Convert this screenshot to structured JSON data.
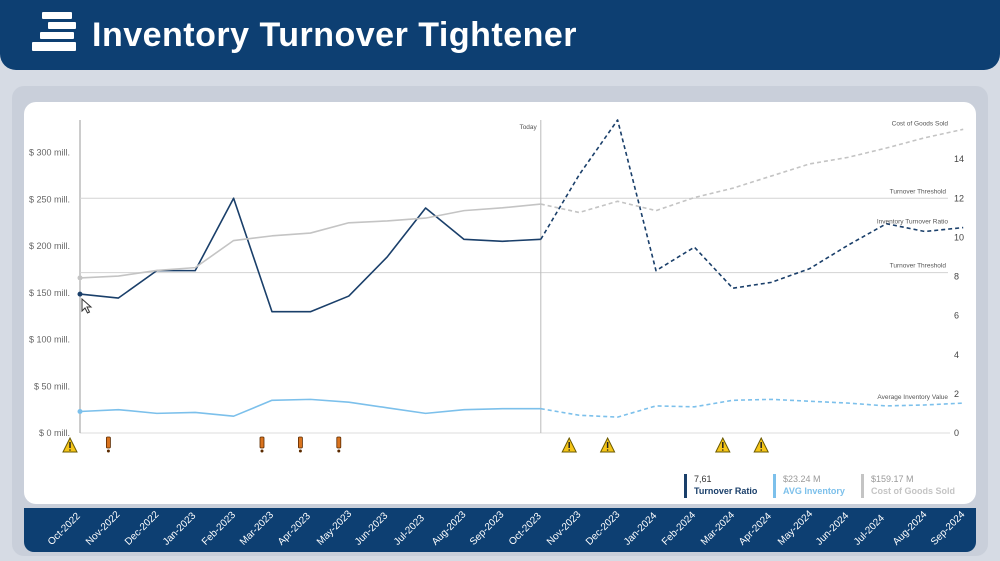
{
  "header": {
    "title": "Inventory Turnover Tightener"
  },
  "legend": [
    {
      "value": "7,61",
      "name": "Turnover Ratio",
      "color": "#1a3f6a",
      "value_color": "#333333"
    },
    {
      "value": "$23.24 M",
      "name": "AVG Inventory",
      "color": "#7cc0eb",
      "value_color": "#9a9a9a"
    },
    {
      "value": "$159.17 M",
      "name": "Cost of Goods Sold",
      "color": "#c4c4c4",
      "value_color": "#9a9a9a"
    }
  ],
  "chart_data": {
    "type": "line",
    "categories": [
      "Oct-2022",
      "Nov-2022",
      "Dec-2022",
      "Jan-2023",
      "Feb-2023",
      "Mar-2023",
      "Apr-2023",
      "May-2023",
      "Jun-2023",
      "Jul-2023",
      "Aug-2023",
      "Sep-2023",
      "Oct-2023",
      "Nov-2023",
      "Dec-2023",
      "Jan-2024",
      "Feb-2024",
      "Mar-2024",
      "Apr-2024",
      "May-2024",
      "Jun-2024",
      "Jul-2024",
      "Aug-2024",
      "Sep-2024"
    ],
    "today_index": 12,
    "today_label": "Today",
    "left_axis": {
      "ticks": [
        0,
        50,
        100,
        150,
        200,
        250,
        300
      ],
      "tick_labels": [
        "$ 0 mill.",
        "$ 50 mill.",
        "$ 100 mill.",
        "$ 150 mill.",
        "$ 200 mill.",
        "$ 250 mill.",
        "$ 300 mill."
      ],
      "ylim": [
        0,
        335
      ]
    },
    "right_axis": {
      "ticks": [
        0,
        2,
        4,
        6,
        8,
        10,
        12,
        14
      ],
      "tick_labels": [
        "0",
        "2",
        "4",
        "6",
        "8",
        "10",
        "12",
        "14"
      ],
      "ylim": [
        0,
        16
      ]
    },
    "series": [
      {
        "name": "Turnover Ratio",
        "axis": "right",
        "color": "#1a3f6a",
        "label": "Inventory Turnover Ratio",
        "values": [
          7.1,
          6.9,
          8.3,
          8.3,
          12.0,
          6.2,
          6.2,
          7.0,
          9.0,
          11.5,
          9.9,
          9.8,
          9.9,
          13.2,
          16.0,
          8.3,
          9.5,
          7.4,
          7.7,
          8.4,
          9.6,
          10.7,
          10.3,
          10.5
        ]
      },
      {
        "name": "AVG Inventory",
        "axis": "left",
        "color": "#7cc0eb",
        "label": "Average Inventory Value",
        "values": [
          23,
          25,
          21,
          22,
          18,
          35,
          36,
          33,
          27,
          21,
          25,
          26,
          26,
          19,
          17,
          29,
          28,
          35,
          36,
          34,
          32,
          29,
          30,
          32
        ]
      },
      {
        "name": "Cost of Goods Sold",
        "axis": "left",
        "color": "#c4c4c4",
        "label": "Cost of Goods Sold",
        "values": [
          166,
          168,
          174,
          177,
          206,
          211,
          214,
          225,
          227,
          230,
          238,
          241,
          245,
          236,
          248,
          238,
          252,
          262,
          275,
          288,
          295,
          305,
          316,
          325
        ]
      }
    ],
    "thresholds": [
      {
        "label": "Turnover Threshold",
        "value": 12
      },
      {
        "label": "Turnover Threshold",
        "value": 8.2
      }
    ],
    "events": [
      {
        "index": 0,
        "kind": "warning"
      },
      {
        "index": 1,
        "kind": "alert"
      },
      {
        "index": 5,
        "kind": "alert"
      },
      {
        "index": 6,
        "kind": "alert"
      },
      {
        "index": 7,
        "kind": "alert"
      },
      {
        "index": 13,
        "kind": "warning"
      },
      {
        "index": 14,
        "kind": "warning"
      },
      {
        "index": 17,
        "kind": "warning"
      },
      {
        "index": 18,
        "kind": "warning"
      }
    ]
  }
}
